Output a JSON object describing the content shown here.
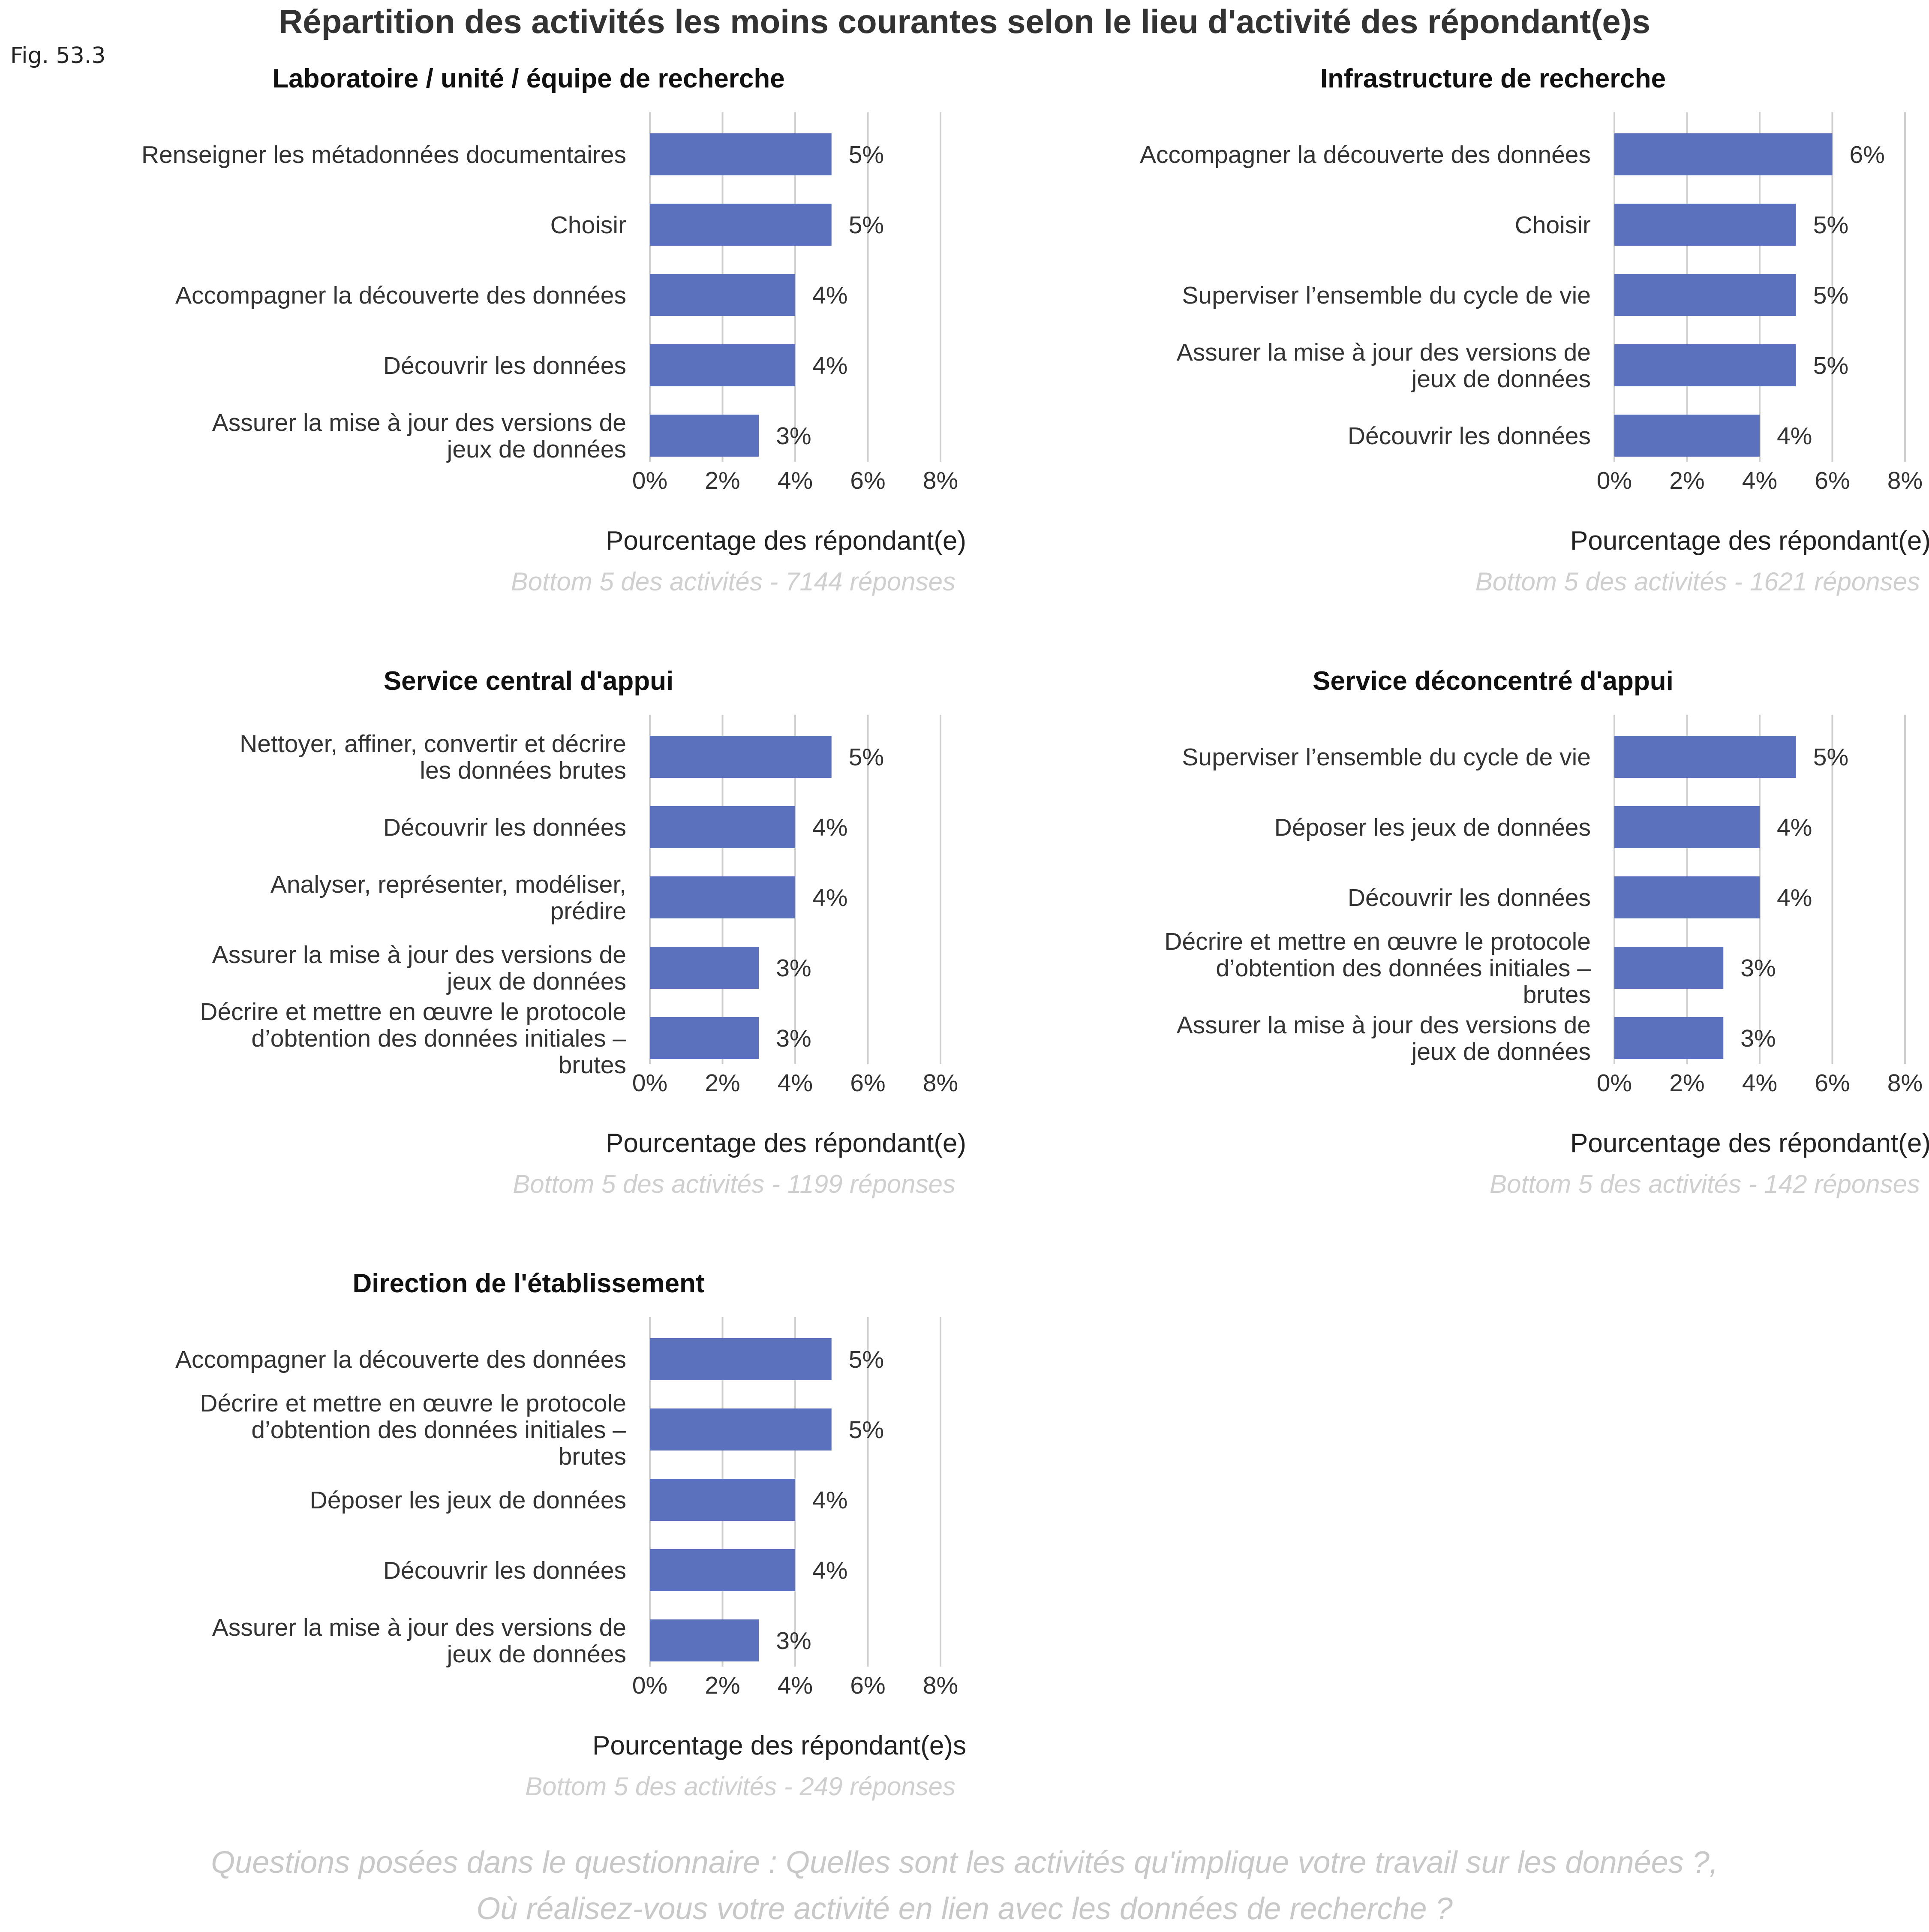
{
  "figure_label": "Fig. 53.3",
  "title": "Répartition des activités les moins courantes selon le lieu d'activité des répondant(e)s",
  "footer": [
    "Questions posées dans le questionnaire : Quelles sont les activités qu'implique votre travail sur les données ?,",
    "Où réalisez-vous votre activité en lien avec les données de recherche ?"
  ],
  "colors": {
    "bar": "#5b71be",
    "grid": "#cfcfcf",
    "caption": "#cfcfcf"
  },
  "chart_data": [
    {
      "type": "bar",
      "orientation": "horizontal",
      "title": "Laboratoire / unité / équipe de recherche",
      "categories": [
        [
          "Renseigner les métadonnées documentaires"
        ],
        [
          "Choisir"
        ],
        [
          "Accompagner la découverte des données"
        ],
        [
          "Découvrir les données"
        ],
        [
          "Assurer la mise à jour des versions de",
          "jeux de données"
        ]
      ],
      "values": [
        5,
        5,
        4,
        4,
        3
      ],
      "value_labels": [
        "5%",
        "5%",
        "4%",
        "4%",
        "3%"
      ],
      "xlabel": "Pourcentage des répondant(e)",
      "caption": "Bottom 5 des activités - 7144 réponses",
      "xlim": [
        0,
        8
      ],
      "xticks": [
        "0%",
        "2%",
        "4%",
        "6%",
        "8%"
      ],
      "grid": "vertical"
    },
    {
      "type": "bar",
      "orientation": "horizontal",
      "title": "Infrastructure de recherche",
      "categories": [
        [
          "Accompagner la découverte des données"
        ],
        [
          "Choisir"
        ],
        [
          "Superviser l’ensemble du cycle de vie"
        ],
        [
          "Assurer la mise à jour des versions de",
          "jeux de données"
        ],
        [
          "Découvrir les données"
        ]
      ],
      "values": [
        6,
        5,
        5,
        5,
        4
      ],
      "value_labels": [
        "6%",
        "5%",
        "5%",
        "5%",
        "4%"
      ],
      "xlabel": "Pourcentage des répondant(e)",
      "caption": "Bottom 5 des activités - 1621 réponses",
      "xlim": [
        0,
        8
      ],
      "xticks": [
        "0%",
        "2%",
        "4%",
        "6%",
        "8%"
      ],
      "grid": "vertical"
    },
    {
      "type": "bar",
      "orientation": "horizontal",
      "title": "Service central d'appui",
      "categories": [
        [
          "Nettoyer, affiner, convertir et décrire",
          "les données brutes"
        ],
        [
          "Découvrir les données"
        ],
        [
          "Analyser, représenter, modéliser,",
          "prédire"
        ],
        [
          "Assurer la mise à jour des versions de",
          "jeux de données"
        ],
        [
          "Décrire et mettre en œuvre le protocole",
          "d’obtention des données initiales –",
          "brutes"
        ]
      ],
      "values": [
        5,
        4,
        4,
        3,
        3
      ],
      "value_labels": [
        "5%",
        "4%",
        "4%",
        "3%",
        "3%"
      ],
      "xlabel": "Pourcentage des répondant(e)",
      "caption": "Bottom 5 des activités - 1199 réponses",
      "xlim": [
        0,
        8
      ],
      "xticks": [
        "0%",
        "2%",
        "4%",
        "6%",
        "8%"
      ],
      "grid": "vertical"
    },
    {
      "type": "bar",
      "orientation": "horizontal",
      "title": "Service déconcentré d'appui",
      "categories": [
        [
          "Superviser l’ensemble du cycle de vie"
        ],
        [
          "Déposer les jeux de données"
        ],
        [
          "Découvrir les données"
        ],
        [
          "Décrire et mettre en œuvre le protocole",
          "d’obtention des données initiales –",
          "brutes"
        ],
        [
          "Assurer la mise à jour des versions de",
          "jeux de données"
        ]
      ],
      "values": [
        5,
        4,
        4,
        3,
        3
      ],
      "value_labels": [
        "5%",
        "4%",
        "4%",
        "3%",
        "3%"
      ],
      "xlabel": "Pourcentage des répondant(e)",
      "caption": "Bottom 5 des activités - 142 réponses",
      "xlim": [
        0,
        8
      ],
      "xticks": [
        "0%",
        "2%",
        "4%",
        "6%",
        "8%"
      ],
      "grid": "vertical"
    },
    {
      "type": "bar",
      "orientation": "horizontal",
      "title": "Direction de l'établissement",
      "categories": [
        [
          "Accompagner la découverte des données"
        ],
        [
          "Décrire et mettre en œuvre le protocole",
          "d’obtention des données initiales –",
          "brutes"
        ],
        [
          "Déposer les jeux de données"
        ],
        [
          "Découvrir les données"
        ],
        [
          "Assurer la mise à jour des versions de",
          "jeux de données"
        ]
      ],
      "values": [
        5,
        5,
        4,
        4,
        3
      ],
      "value_labels": [
        "5%",
        "5%",
        "4%",
        "4%",
        "3%"
      ],
      "xlabel": "Pourcentage des répondant(e)s",
      "caption": "Bottom 5 des activités - 249 réponses",
      "xlim": [
        0,
        8
      ],
      "xticks": [
        "0%",
        "2%",
        "4%",
        "6%",
        "8%"
      ],
      "grid": "vertical"
    }
  ]
}
